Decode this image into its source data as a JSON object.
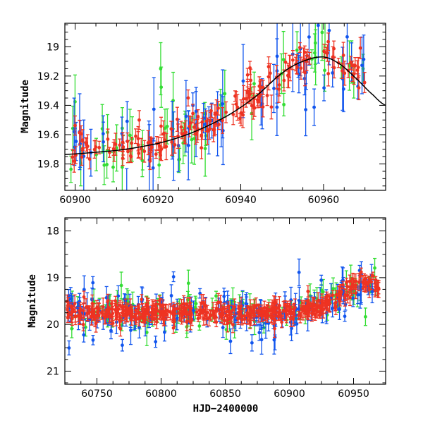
{
  "chart_data": [
    {
      "type": "scatter",
      "name": "top-zoom-panel",
      "ylabel": "Magnitude",
      "xlabel": "",
      "xlim": [
        60897.5,
        60975
      ],
      "ylim": [
        19.98,
        18.84
      ],
      "y_inverted": true,
      "xticks": [
        60900,
        60920,
        60940,
        60960
      ],
      "yticks": [
        19.0,
        19.2,
        19.4,
        19.6,
        19.8
      ],
      "ytick_labels": [
        "19",
        "19.2",
        "19.4",
        "19.6",
        "19.8"
      ],
      "series_colors": {
        "green": "#33dd33",
        "blue": "#1155ee",
        "red": "#ee3322",
        "model": "#000000"
      },
      "model_curve": {
        "description": "smooth black model fit",
        "x": [
          60897.5,
          60905,
          60912,
          60920,
          60926,
          60932,
          60938,
          60944,
          60950,
          60955,
          60960,
          60964,
          60968,
          60972,
          60975
        ],
        "y": [
          19.735,
          19.72,
          19.7,
          19.66,
          19.61,
          19.54,
          19.45,
          19.33,
          19.18,
          19.1,
          19.07,
          19.12,
          19.22,
          19.33,
          19.4
        ]
      },
      "trend": {
        "x": [
          60897.5,
          60905,
          60912,
          60920,
          60926,
          60932,
          60938,
          60944,
          60950,
          60955,
          60960,
          60964,
          60968,
          60970
        ],
        "y": [
          19.71,
          19.7,
          19.68,
          19.65,
          19.6,
          19.53,
          19.45,
          19.34,
          19.2,
          19.1,
          19.06,
          19.1,
          19.2,
          19.26
        ]
      },
      "noise_scale": {
        "red": 0.05,
        "blue": 0.14,
        "green": 0.12
      },
      "err_scale": {
        "red": 0.07,
        "blue": 0.2,
        "green": 0.15
      },
      "counts": {
        "red": 170,
        "blue": 60,
        "green": 55
      }
    },
    {
      "type": "scatter",
      "name": "bottom-full-panel",
      "ylabel": "Magnitude",
      "xlabel": "HJD−2400000",
      "xlim": [
        60725,
        60975
      ],
      "ylim": [
        21.28,
        17.72
      ],
      "y_inverted": true,
      "xticks": [
        60750,
        60800,
        60850,
        60900,
        60950
      ],
      "yticks": [
        18,
        19,
        20,
        21
      ],
      "ytick_labels": [
        "18",
        "19",
        "20",
        "21"
      ],
      "series_colors": {
        "green": "#33dd33",
        "blue": "#1155ee",
        "red": "#ee3322"
      },
      "trend": {
        "x": [
          60725,
          60800,
          60850,
          60880,
          60900,
          60915,
          60925,
          60935,
          60945,
          60955,
          60960,
          60965,
          60970
        ],
        "y": [
          19.73,
          19.75,
          19.76,
          19.76,
          19.73,
          19.68,
          19.6,
          19.45,
          19.25,
          19.1,
          19.1,
          19.15,
          19.22
        ]
      },
      "noise_scale": {
        "red": 0.1,
        "blue": 0.2,
        "green": 0.2
      },
      "err_scale": {
        "red": 0.15,
        "blue": 0.25,
        "green": 0.22
      },
      "counts": {
        "red": 430,
        "blue": 170,
        "green": 120
      }
    }
  ]
}
